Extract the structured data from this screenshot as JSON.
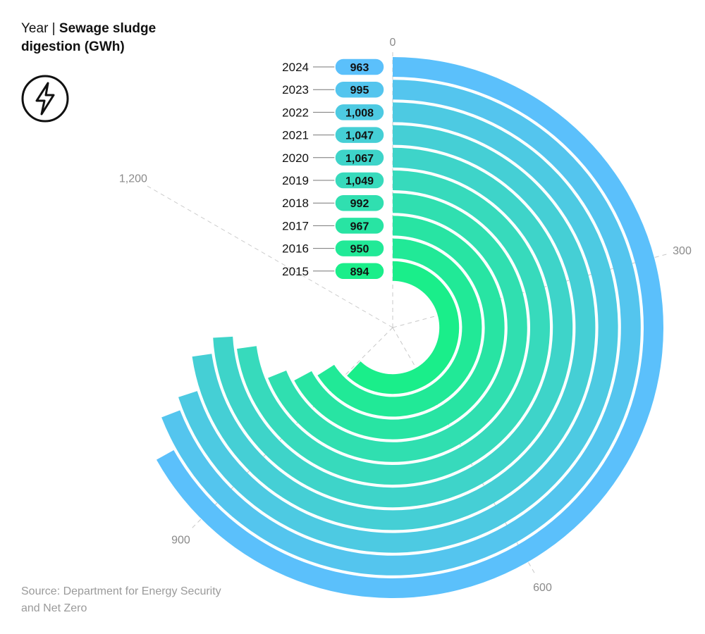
{
  "header": {
    "title_prefix": "Year",
    "title_separator": "|",
    "title_main": "Sewage sludge digestion (GWh)"
  },
  "icon": "lightning-bolt-icon",
  "source": "Source: Department for Energy Security and Net Zero",
  "colors": {
    "inner": "#1aee8a",
    "outer": "#5bc0fb",
    "gridline": "#c8c8c8",
    "pill_border": "#ffffff"
  },
  "chart_data": {
    "type": "radial-bar",
    "title": "Sewage sludge digestion (GWh)",
    "category_label": "Year",
    "axis_max": 1440,
    "axis_ticks": [
      0,
      300,
      600,
      900,
      1200
    ],
    "axis_tick_labels": [
      "0",
      "300",
      "600",
      "900",
      "1,200"
    ],
    "categories": [
      "2024",
      "2023",
      "2022",
      "2021",
      "2020",
      "2019",
      "2018",
      "2017",
      "2016",
      "2015"
    ],
    "values": [
      963,
      995,
      1008,
      1047,
      1067,
      1049,
      992,
      967,
      950,
      894
    ],
    "value_labels": [
      "963",
      "995",
      "1,008",
      "1,047",
      "1,067",
      "1,049",
      "992",
      "967",
      "950",
      "894"
    ]
  }
}
